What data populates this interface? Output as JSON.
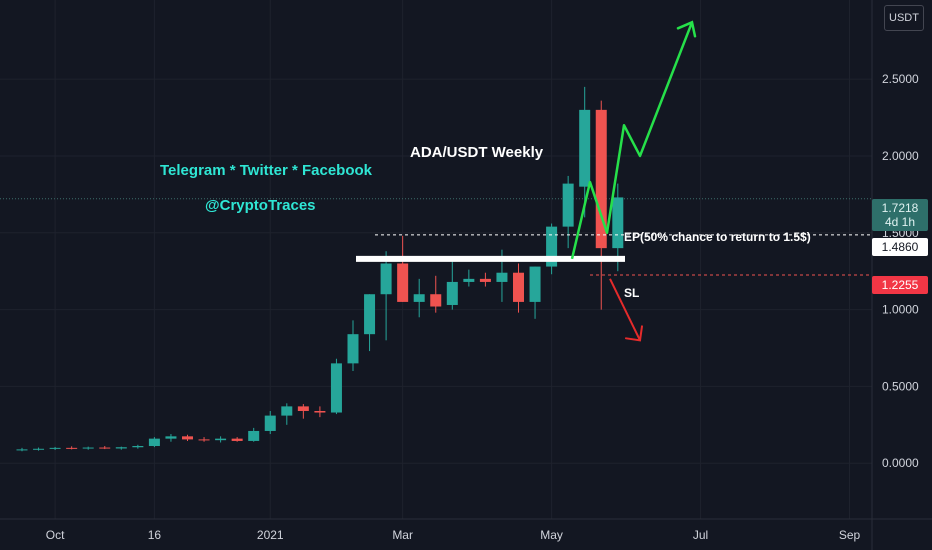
{
  "chart_data": {
    "type": "candlestick",
    "pair": "ADA/USDT",
    "interval": "Weekly",
    "currency": "USDT",
    "ylim": [
      -0.35,
      2.95
    ],
    "y_ticks": [
      0.0,
      0.5,
      1.0,
      1.5,
      2.0,
      2.5
    ],
    "y_tick_labels": [
      "0.0000",
      "0.5000",
      "1.0000",
      "1.5000",
      "2.0000",
      "2.5000"
    ],
    "x_ticks": [
      {
        "label": "Oct",
        "week": 2
      },
      {
        "label": "16",
        "week": 8
      },
      {
        "label": "2021",
        "week": 15
      },
      {
        "label": "Mar",
        "week": 23
      },
      {
        "label": "May",
        "week": 32
      },
      {
        "label": "Jul",
        "week": 41
      },
      {
        "label": "Sep",
        "week": 50
      }
    ],
    "candles": [
      {
        "o": 0.085,
        "h": 0.1,
        "l": 0.078,
        "c": 0.09
      },
      {
        "o": 0.09,
        "h": 0.102,
        "l": 0.082,
        "c": 0.094
      },
      {
        "o": 0.094,
        "h": 0.106,
        "l": 0.086,
        "c": 0.1
      },
      {
        "o": 0.1,
        "h": 0.11,
        "l": 0.09,
        "c": 0.098
      },
      {
        "o": 0.098,
        "h": 0.108,
        "l": 0.088,
        "c": 0.102
      },
      {
        "o": 0.102,
        "h": 0.112,
        "l": 0.092,
        "c": 0.096
      },
      {
        "o": 0.096,
        "h": 0.108,
        "l": 0.088,
        "c": 0.104
      },
      {
        "o": 0.104,
        "h": 0.12,
        "l": 0.095,
        "c": 0.112
      },
      {
        "o": 0.112,
        "h": 0.17,
        "l": 0.105,
        "c": 0.16
      },
      {
        "o": 0.16,
        "h": 0.19,
        "l": 0.14,
        "c": 0.175
      },
      {
        "o": 0.175,
        "h": 0.185,
        "l": 0.145,
        "c": 0.155
      },
      {
        "o": 0.155,
        "h": 0.17,
        "l": 0.14,
        "c": 0.15
      },
      {
        "o": 0.15,
        "h": 0.175,
        "l": 0.135,
        "c": 0.16
      },
      {
        "o": 0.16,
        "h": 0.17,
        "l": 0.14,
        "c": 0.145
      },
      {
        "o": 0.145,
        "h": 0.23,
        "l": 0.14,
        "c": 0.21
      },
      {
        "o": 0.21,
        "h": 0.34,
        "l": 0.19,
        "c": 0.31
      },
      {
        "o": 0.31,
        "h": 0.39,
        "l": 0.25,
        "c": 0.37
      },
      {
        "o": 0.37,
        "h": 0.385,
        "l": 0.29,
        "c": 0.34
      },
      {
        "o": 0.34,
        "h": 0.37,
        "l": 0.3,
        "c": 0.33
      },
      {
        "o": 0.33,
        "h": 0.68,
        "l": 0.32,
        "c": 0.65
      },
      {
        "o": 0.65,
        "h": 0.93,
        "l": 0.6,
        "c": 0.84
      },
      {
        "o": 0.84,
        "h": 1.1,
        "l": 0.73,
        "c": 1.1
      },
      {
        "o": 1.1,
        "h": 1.38,
        "l": 0.8,
        "c": 1.3
      },
      {
        "o": 1.3,
        "h": 1.48,
        "l": 1.05,
        "c": 1.05
      },
      {
        "o": 1.05,
        "h": 1.2,
        "l": 0.95,
        "c": 1.1
      },
      {
        "o": 1.1,
        "h": 1.22,
        "l": 0.98,
        "c": 1.02
      },
      {
        "o": 1.03,
        "h": 1.33,
        "l": 1.0,
        "c": 1.18
      },
      {
        "o": 1.18,
        "h": 1.26,
        "l": 1.15,
        "c": 1.2
      },
      {
        "o": 1.2,
        "h": 1.24,
        "l": 1.15,
        "c": 1.18
      },
      {
        "o": 1.18,
        "h": 1.39,
        "l": 1.05,
        "c": 1.24
      },
      {
        "o": 1.24,
        "h": 1.3,
        "l": 0.98,
        "c": 1.05
      },
      {
        "o": 1.05,
        "h": 1.28,
        "l": 0.94,
        "c": 1.28
      },
      {
        "o": 1.28,
        "h": 1.56,
        "l": 1.23,
        "c": 1.54
      },
      {
        "o": 1.54,
        "h": 1.87,
        "l": 1.4,
        "c": 1.82
      },
      {
        "o": 1.8,
        "h": 2.45,
        "l": 1.6,
        "c": 2.3
      },
      {
        "o": 2.3,
        "h": 2.36,
        "l": 1.0,
        "c": 1.4
      },
      {
        "o": 1.4,
        "h": 1.82,
        "l": 1.25,
        "c": 1.73
      }
    ],
    "current_price": "1.7218",
    "countdown": "4d 1h",
    "entry_price": "1.4860",
    "stop_loss": "1.2255"
  },
  "annotations": {
    "title": "ADA/USDT Weekly",
    "social": "Telegram * Twitter * Facebook",
    "handle": "@CryptoTraces",
    "entry": "EP(50% chance to return to 1.5$)",
    "stop": "SL"
  },
  "colors": {
    "background": "#131722",
    "grid": "#1e222d",
    "up": "#26a69a",
    "down": "#ef5350",
    "axis_text": "#d1d4dc",
    "green_path": "#26e04a",
    "red_arrow": "#e52b2b",
    "accent": "#2fe6d4"
  }
}
